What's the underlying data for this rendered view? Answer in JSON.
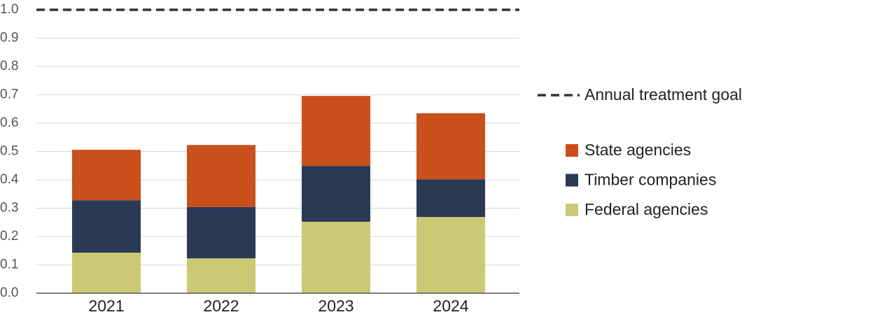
{
  "chart_data": {
    "type": "stacked-bar",
    "categories": [
      "2021",
      "2022",
      "2023",
      "2024"
    ],
    "series": [
      {
        "name": "Federal agencies",
        "color": "#cbc974",
        "values": [
          0.143,
          0.123,
          0.252,
          0.269
        ]
      },
      {
        "name": "Timber companies",
        "color": "#2a3a55",
        "values": [
          0.185,
          0.181,
          0.197,
          0.133
        ]
      },
      {
        "name": "State agencies",
        "color": "#c94f1c",
        "values": [
          0.178,
          0.219,
          0.247,
          0.233
        ]
      }
    ],
    "goal": {
      "name": "Annual treatment goal",
      "value": 1,
      "color": "#333333"
    },
    "ylim": [
      0,
      1
    ],
    "yticks": [
      {
        "value": 0,
        "label": "0.0"
      },
      0.1,
      0.2,
      0.3,
      0.4,
      0.5,
      0.6,
      0.7,
      0.8,
      0.9,
      {
        "value": 1,
        "label": "1.0"
      }
    ],
    "grid": true
  }
}
